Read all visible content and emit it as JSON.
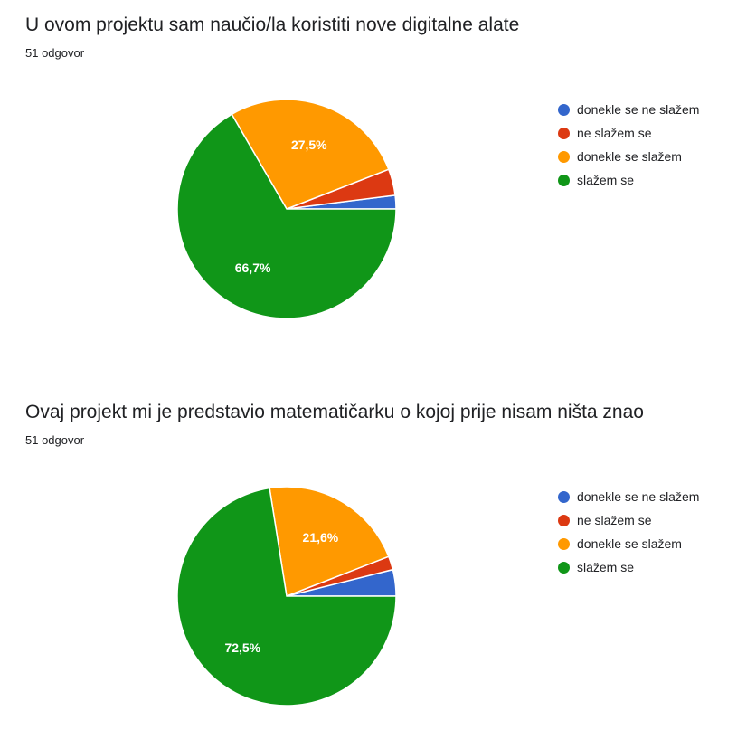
{
  "chart_data": [
    {
      "type": "pie",
      "title": "U ovom projektu sam naučio/la koristiti nove digitalne alate",
      "subtitle": "51 odgovor",
      "legend_position": "right",
      "categories": [
        "donekle se ne slažem",
        "ne slažem se",
        "donekle se slažem",
        "slažem se"
      ],
      "values": [
        2.0,
        3.9,
        27.5,
        66.7
      ],
      "colors": [
        "#3366cc",
        "#dc3912",
        "#ff9900",
        "#109618"
      ],
      "data_labels": [
        "",
        "",
        "27,5%",
        "66,7%"
      ]
    },
    {
      "type": "pie",
      "title": "Ovaj projekt mi je predstavio matematičarku o kojoj prije nisam ništa znao",
      "subtitle": "51 odgovor",
      "legend_position": "right",
      "categories": [
        "donekle se ne slažem",
        "ne slažem se",
        "donekle se slažem",
        "slažem se"
      ],
      "values": [
        3.9,
        2.0,
        21.6,
        72.5
      ],
      "colors": [
        "#3366cc",
        "#dc3912",
        "#ff9900",
        "#109618"
      ],
      "data_labels": [
        "",
        "",
        "21,6%",
        "72,5%"
      ]
    }
  ]
}
